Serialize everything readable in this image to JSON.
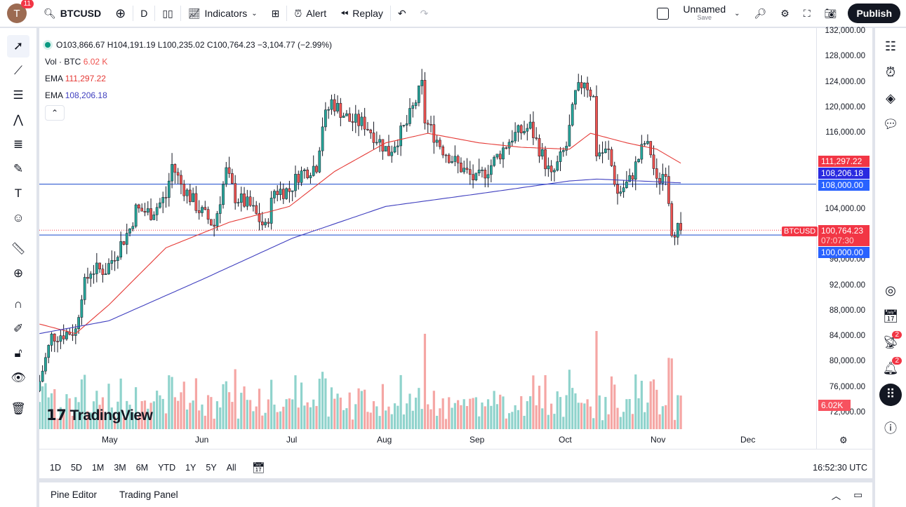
{
  "topbar": {
    "avatar_letter": "T",
    "notifications": "11",
    "symbol": "BTCUSD",
    "interval": "D",
    "indicators": "Indicators",
    "alert": "Alert",
    "replay": "Replay",
    "layout_name": "Unnamed",
    "layout_save": "Save",
    "publish": "Publish"
  },
  "legend": {
    "ohlc": "O103,866.67 H104,191.19 L100,235.02 C100,764.23 −3,104.77 (−2.99%)",
    "vol_label": "Vol · BTC",
    "vol_value": "6.02 K",
    "ema1_label": "EMA",
    "ema1_value": "111,297.22",
    "ema2_label": "EMA",
    "ema2_value": "108,206.18"
  },
  "price_axis": {
    "labels": [
      "132,000.00",
      "128,000.00",
      "124,000.00",
      "120,000.00",
      "116,000.00",
      "104,000.00",
      "96,000.00",
      "92,000.00",
      "88,000.00",
      "84,000.00",
      "80,000.00",
      "76,000.00",
      "72,000.00"
    ],
    "tags": {
      "ema1": "111,297.22",
      "ema2": "108,206.18",
      "line1": "108,000.00",
      "last": "100,764.23",
      "countdown": "07:07:30",
      "line2": "100,000.00",
      "symbol": "BTCUSD",
      "volume": "6.02K"
    }
  },
  "time_axis": [
    "May",
    "Jun",
    "Jul",
    "Aug",
    "Sep",
    "Oct",
    "Nov",
    "Dec"
  ],
  "ranges": [
    "1D",
    "5D",
    "1M",
    "3M",
    "6M",
    "YTD",
    "1Y",
    "5Y",
    "All"
  ],
  "clock": "16:52:30 UTC",
  "panel": {
    "pine": "Pine Editor",
    "trading": "Trading Panel"
  },
  "logo": "TradingView",
  "right_badges": {
    "ideas": "2",
    "alerts": "2"
  },
  "colors": {
    "up": "#26a69a",
    "down": "#ef5350",
    "ema1": "#e53935",
    "ema2": "#3f3fbf",
    "hline": "#2962ff"
  },
  "chart_data": {
    "type": "candlestick",
    "ylim": [
      70000,
      132000
    ],
    "hlines": [
      108000,
      100000
    ],
    "closes": [
      [
        "04-08",
        77000
      ],
      [
        "04-12",
        84000
      ],
      [
        "04-20",
        85000
      ],
      [
        "04-22",
        91000
      ],
      [
        "04-25",
        94500
      ],
      [
        "04-30",
        94500
      ],
      [
        "05-08",
        101000
      ],
      [
        "05-10",
        104000
      ],
      [
        "05-15",
        103500
      ],
      [
        "05-20",
        106000
      ],
      [
        "05-22",
        111000
      ],
      [
        "05-25",
        108000
      ],
      [
        "05-31",
        104000
      ],
      [
        "06-05",
        101500
      ],
      [
        "06-09",
        110000
      ],
      [
        "06-12",
        106000
      ],
      [
        "06-17",
        104500
      ],
      [
        "06-22",
        101000
      ],
      [
        "06-25",
        107000
      ],
      [
        "06-30",
        107000
      ],
      [
        "07-03",
        109500
      ],
      [
        "07-09",
        111000
      ],
      [
        "07-11",
        117500
      ],
      [
        "07-14",
        121000
      ],
      [
        "07-20",
        118000
      ],
      [
        "07-25",
        117500
      ],
      [
        "08-02",
        113000
      ],
      [
        "08-08",
        117500
      ],
      [
        "08-13",
        123500
      ],
      [
        "08-14",
        118000
      ],
      [
        "08-20",
        113500
      ],
      [
        "08-25",
        111000
      ],
      [
        "08-31",
        108500
      ],
      [
        "09-05",
        111000
      ],
      [
        "09-12",
        115500
      ],
      [
        "09-18",
        117000
      ],
      [
        "09-22",
        112500
      ],
      [
        "09-25",
        109000
      ],
      [
        "09-30",
        114000
      ],
      [
        "10-03",
        122000
      ],
      [
        "10-06",
        124500
      ],
      [
        "10-09",
        121500
      ],
      [
        "10-10",
        113000
      ],
      [
        "10-14",
        113000
      ],
      [
        "10-17",
        106500
      ],
      [
        "10-21",
        108500
      ],
      [
        "10-26",
        114500
      ],
      [
        "10-28",
        113000
      ],
      [
        "10-30",
        108000
      ],
      [
        "11-02",
        110500
      ],
      [
        "11-04",
        101000
      ],
      [
        "11-07",
        100764
      ]
    ],
    "ema1": [
      [
        "04-08",
        86000
      ],
      [
        "04-20",
        84500
      ],
      [
        "05-01",
        89000
      ],
      [
        "05-20",
        98000
      ],
      [
        "06-10",
        102000
      ],
      [
        "06-30",
        104500
      ],
      [
        "07-15",
        110000
      ],
      [
        "08-01",
        114500
      ],
      [
        "08-15",
        116000
      ],
      [
        "09-01",
        114500
      ],
      [
        "09-15",
        113800
      ],
      [
        "10-01",
        113500
      ],
      [
        "10-08",
        116000
      ],
      [
        "10-20",
        114500
      ],
      [
        "10-30",
        113500
      ],
      [
        "11-07",
        111297
      ]
    ],
    "ema2": [
      [
        "04-08",
        84500
      ],
      [
        "05-01",
        86500
      ],
      [
        "06-01",
        93000
      ],
      [
        "07-01",
        99500
      ],
      [
        "08-01",
        104500
      ],
      [
        "09-01",
        106500
      ],
      [
        "10-01",
        108500
      ],
      [
        "10-10",
        108800
      ],
      [
        "11-07",
        108206
      ]
    ]
  }
}
